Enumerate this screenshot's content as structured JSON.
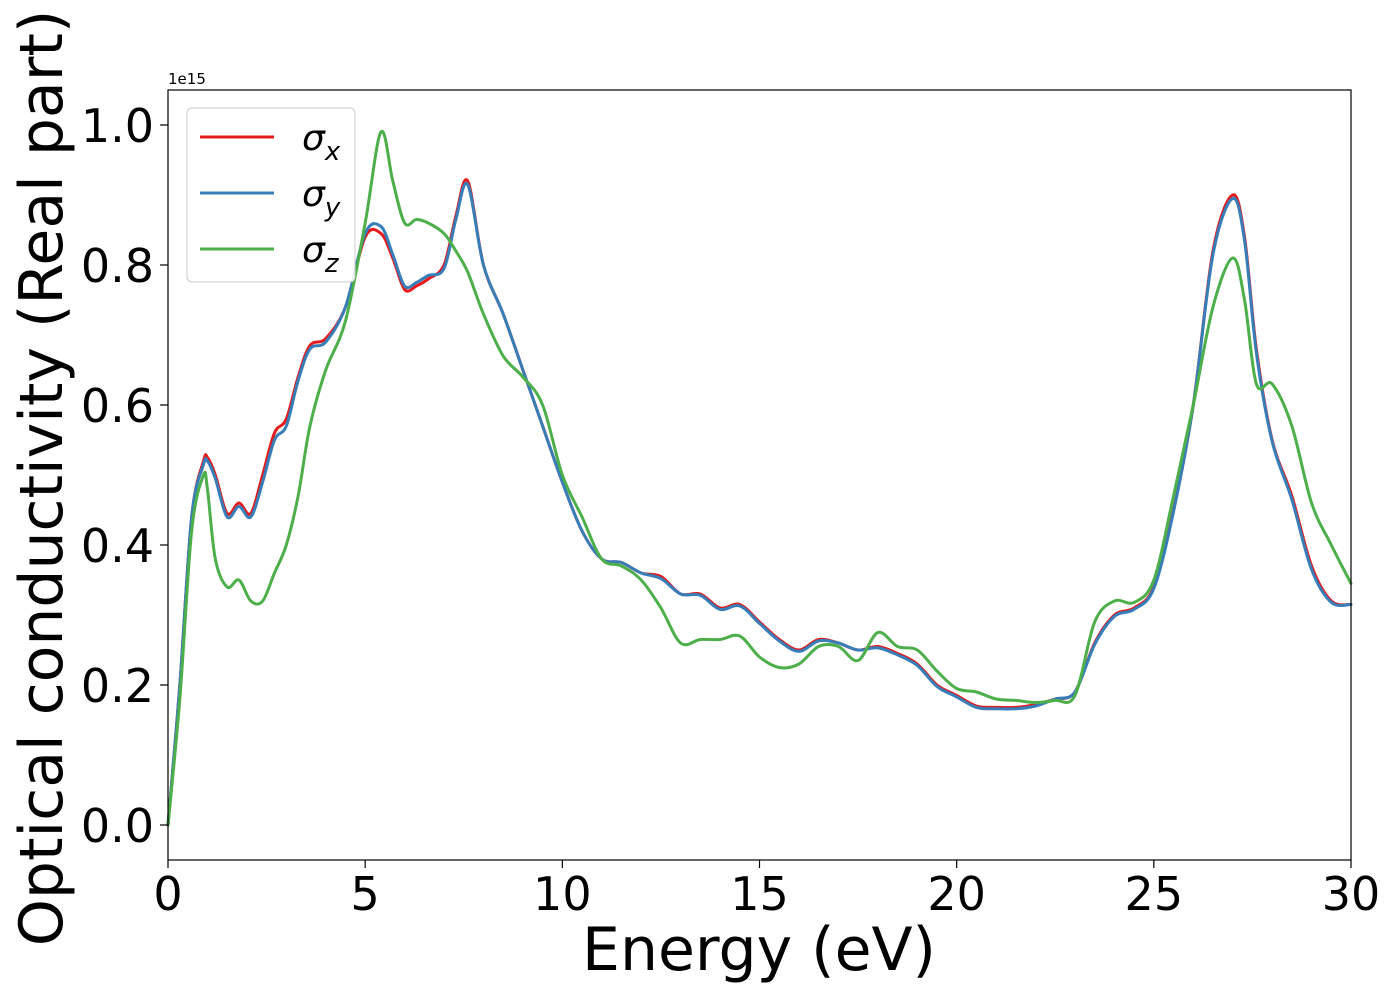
{
  "chart_data": {
    "type": "line",
    "xlabel": "Energy (eV)",
    "ylabel": "Optical conductivity (Real part)",
    "offset_text": "1e15",
    "xlim": [
      0,
      30
    ],
    "ylim": [
      -0.05,
      1.05
    ],
    "x_ticks": [
      0,
      5,
      10,
      15,
      20,
      25,
      30
    ],
    "x_tick_labels": [
      "0",
      "5",
      "10",
      "15",
      "20",
      "25",
      "30"
    ],
    "y_ticks": [
      0.0,
      0.2,
      0.4,
      0.6,
      0.8,
      1.0
    ],
    "y_tick_labels": [
      "0.0",
      "0.2",
      "0.4",
      "0.6",
      "0.8",
      "1.0"
    ],
    "grid": false,
    "legend_position": "top-left",
    "x": [
      0,
      0.3,
      0.6,
      0.9,
      1.0,
      1.2,
      1.5,
      1.8,
      2.1,
      2.4,
      2.7,
      3.0,
      3.3,
      3.6,
      4.0,
      4.5,
      5.0,
      5.4,
      5.7,
      6.0,
      6.3,
      6.6,
      7.0,
      7.3,
      7.6,
      8.0,
      8.5,
      9.0,
      9.5,
      10.0,
      10.5,
      11.0,
      11.5,
      12.0,
      12.5,
      13.0,
      13.5,
      14.0,
      14.5,
      15.0,
      15.5,
      16.0,
      16.5,
      17.0,
      17.5,
      18.0,
      18.5,
      19.0,
      19.5,
      20.0,
      20.5,
      21.0,
      21.5,
      22.0,
      22.5,
      23.0,
      23.5,
      24.0,
      24.5,
      25.0,
      25.5,
      26.0,
      26.5,
      27.0,
      27.3,
      27.6,
      28.0,
      28.5,
      29.0,
      29.5,
      30.0
    ],
    "series": [
      {
        "name": "σx",
        "color": "#e41a1c",
        "values": [
          0.0,
          0.2,
          0.44,
          0.52,
          0.525,
          0.5,
          0.445,
          0.46,
          0.445,
          0.5,
          0.56,
          0.58,
          0.64,
          0.685,
          0.695,
          0.74,
          0.84,
          0.845,
          0.81,
          0.765,
          0.77,
          0.78,
          0.8,
          0.87,
          0.92,
          0.8,
          0.73,
          0.65,
          0.57,
          0.49,
          0.42,
          0.38,
          0.375,
          0.36,
          0.355,
          0.33,
          0.33,
          0.31,
          0.315,
          0.29,
          0.265,
          0.25,
          0.265,
          0.26,
          0.25,
          0.255,
          0.245,
          0.23,
          0.2,
          0.185,
          0.17,
          0.168,
          0.168,
          0.172,
          0.18,
          0.19,
          0.26,
          0.3,
          0.31,
          0.34,
          0.45,
          0.6,
          0.82,
          0.9,
          0.84,
          0.68,
          0.55,
          0.47,
          0.37,
          0.32,
          0.315
        ]
      },
      {
        "name": "σy",
        "color": "#377eb8",
        "values": [
          0.0,
          0.2,
          0.44,
          0.515,
          0.52,
          0.495,
          0.44,
          0.455,
          0.44,
          0.49,
          0.55,
          0.57,
          0.635,
          0.68,
          0.69,
          0.74,
          0.845,
          0.855,
          0.815,
          0.77,
          0.775,
          0.785,
          0.795,
          0.865,
          0.915,
          0.8,
          0.73,
          0.65,
          0.57,
          0.49,
          0.42,
          0.38,
          0.375,
          0.36,
          0.352,
          0.33,
          0.328,
          0.308,
          0.313,
          0.288,
          0.263,
          0.248,
          0.263,
          0.26,
          0.25,
          0.253,
          0.243,
          0.228,
          0.198,
          0.183,
          0.168,
          0.166,
          0.166,
          0.17,
          0.18,
          0.19,
          0.258,
          0.298,
          0.308,
          0.338,
          0.448,
          0.6,
          0.815,
          0.895,
          0.835,
          0.675,
          0.548,
          0.465,
          0.365,
          0.318,
          0.315
        ]
      },
      {
        "name": "σz",
        "color": "#4daf4a",
        "values": [
          0.0,
          0.18,
          0.42,
          0.5,
          0.48,
          0.38,
          0.34,
          0.35,
          0.32,
          0.32,
          0.36,
          0.4,
          0.47,
          0.57,
          0.65,
          0.72,
          0.86,
          0.99,
          0.92,
          0.86,
          0.865,
          0.86,
          0.845,
          0.82,
          0.79,
          0.73,
          0.67,
          0.64,
          0.6,
          0.5,
          0.44,
          0.38,
          0.37,
          0.35,
          0.31,
          0.26,
          0.265,
          0.265,
          0.27,
          0.24,
          0.225,
          0.23,
          0.255,
          0.255,
          0.235,
          0.275,
          0.255,
          0.25,
          0.22,
          0.195,
          0.19,
          0.18,
          0.178,
          0.175,
          0.178,
          0.185,
          0.29,
          0.32,
          0.318,
          0.35,
          0.47,
          0.6,
          0.74,
          0.81,
          0.75,
          0.63,
          0.63,
          0.57,
          0.46,
          0.4,
          0.345
        ]
      }
    ]
  }
}
